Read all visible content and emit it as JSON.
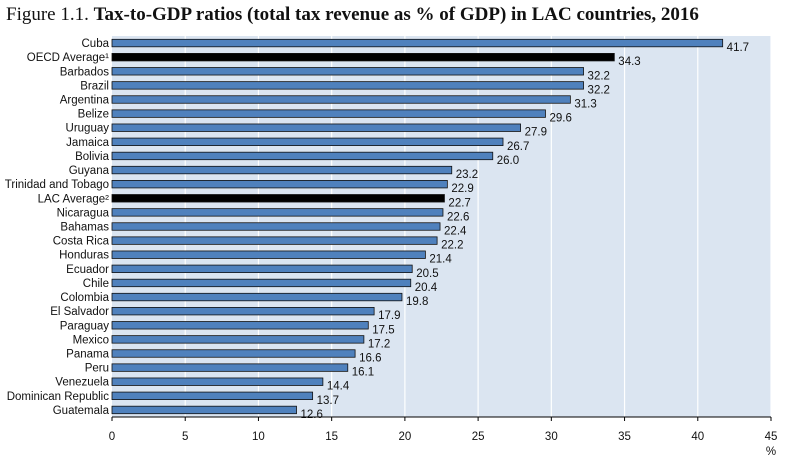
{
  "title": {
    "figure_label": "Figure 1.1.",
    "text": "Tax-to-GDP ratios (total tax revenue as % of GDP) in LAC countries, 2016"
  },
  "chart_data": {
    "type": "bar",
    "orientation": "horizontal",
    "title": "Figure 1.1. Tax-to-GDP ratios (total tax revenue as % of GDP) in LAC countries, 2016",
    "xlabel": "%",
    "ylabel": "",
    "xlim": [
      0,
      45
    ],
    "xticks": [
      0,
      5,
      10,
      15,
      20,
      25,
      30,
      35,
      40,
      45
    ],
    "grid": "vertical",
    "legend": "none",
    "categories": [
      "Cuba",
      "OECD Average¹",
      "Barbados",
      "Brazil",
      "Argentina",
      "Belize",
      "Uruguay",
      "Jamaica",
      "Bolivia",
      "Guyana",
      "Trinidad and Tobago",
      "LAC Average²",
      "Nicaragua",
      "Bahamas",
      "Costa Rica",
      "Honduras",
      "Ecuador",
      "Chile",
      "Colombia",
      "El Salvador",
      "Paraguay",
      "Mexico",
      "Panama",
      "Peru",
      "Venezuela",
      "Dominican Republic",
      "Guatemala"
    ],
    "values": [
      41.7,
      34.3,
      32.2,
      32.2,
      31.3,
      29.6,
      27.9,
      26.7,
      26.0,
      23.2,
      22.9,
      22.7,
      22.6,
      22.4,
      22.2,
      21.4,
      20.5,
      20.4,
      19.8,
      17.9,
      17.5,
      17.2,
      16.6,
      16.1,
      14.4,
      13.7,
      12.6
    ],
    "value_labels": [
      "41.7",
      "34.3",
      "32.2",
      "32.2",
      "31.3",
      "29.6",
      "27.9",
      "26.7",
      "26.0",
      "23.2",
      "22.9",
      "22.7",
      "22.6",
      "22.4",
      "22.2",
      "21.4",
      "20.5",
      "20.4",
      "19.8",
      "17.9",
      "17.5",
      "17.2",
      "16.6",
      "16.1",
      "14.4",
      "13.7",
      "12.6"
    ],
    "highlight": [
      false,
      true,
      false,
      false,
      false,
      false,
      false,
      false,
      false,
      false,
      false,
      true,
      false,
      false,
      false,
      false,
      false,
      false,
      false,
      false,
      false,
      false,
      false,
      false,
      false,
      false,
      false
    ],
    "colors": {
      "bar": "#4f81bd",
      "bar_outline": "#111111",
      "highlight": "#000000",
      "plot_background": "#dbe5f1",
      "grid": "#ffffff",
      "axis": "#000000"
    }
  }
}
